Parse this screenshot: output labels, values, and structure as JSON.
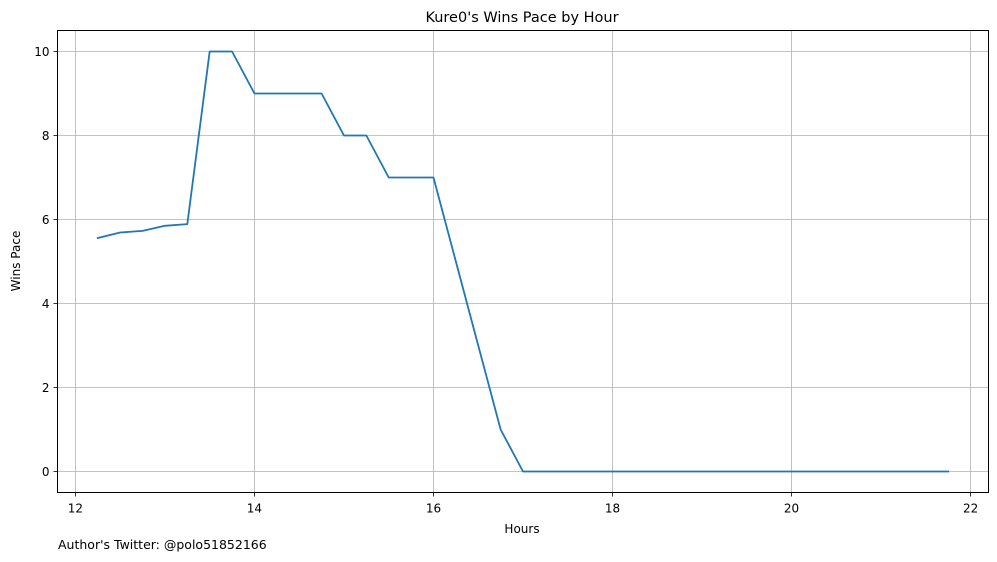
{
  "footnote": "Author's Twitter: @polo51852166",
  "chart_data": {
    "type": "line",
    "title": "Kure0's Wins Pace by Hour",
    "xlabel": "Hours",
    "ylabel": "Wins Pace",
    "xlim": [
      11.8,
      22.2
    ],
    "ylim": [
      -0.5,
      10.5
    ],
    "xticks": [
      12,
      14,
      16,
      18,
      20,
      22
    ],
    "yticks": [
      0,
      2,
      4,
      6,
      8,
      10
    ],
    "grid": true,
    "line_color": "#1f77b4",
    "series": [
      {
        "x": [
          12.25,
          12.5,
          12.75,
          13.0,
          13.25,
          13.5,
          13.75,
          14.0,
          14.25,
          14.5,
          14.75,
          15.0,
          15.25,
          15.5,
          15.75,
          16.0,
          16.25,
          16.5,
          16.75,
          17.0,
          17.25,
          17.5,
          17.75,
          18.0,
          18.25,
          18.5,
          18.75,
          19.0,
          19.25,
          19.5,
          19.75,
          20.0,
          20.25,
          20.5,
          20.75,
          21.0,
          21.25,
          21.5,
          21.75
        ],
        "y": [
          5.56,
          5.69,
          5.73,
          5.85,
          5.89,
          10,
          10,
          9,
          9,
          9,
          9,
          8,
          8,
          7,
          7,
          7,
          5,
          3,
          1,
          0,
          0,
          0,
          0,
          0,
          0,
          0,
          0,
          0,
          0,
          0,
          0,
          0,
          0,
          0,
          0,
          0,
          0,
          0,
          0
        ]
      }
    ]
  }
}
